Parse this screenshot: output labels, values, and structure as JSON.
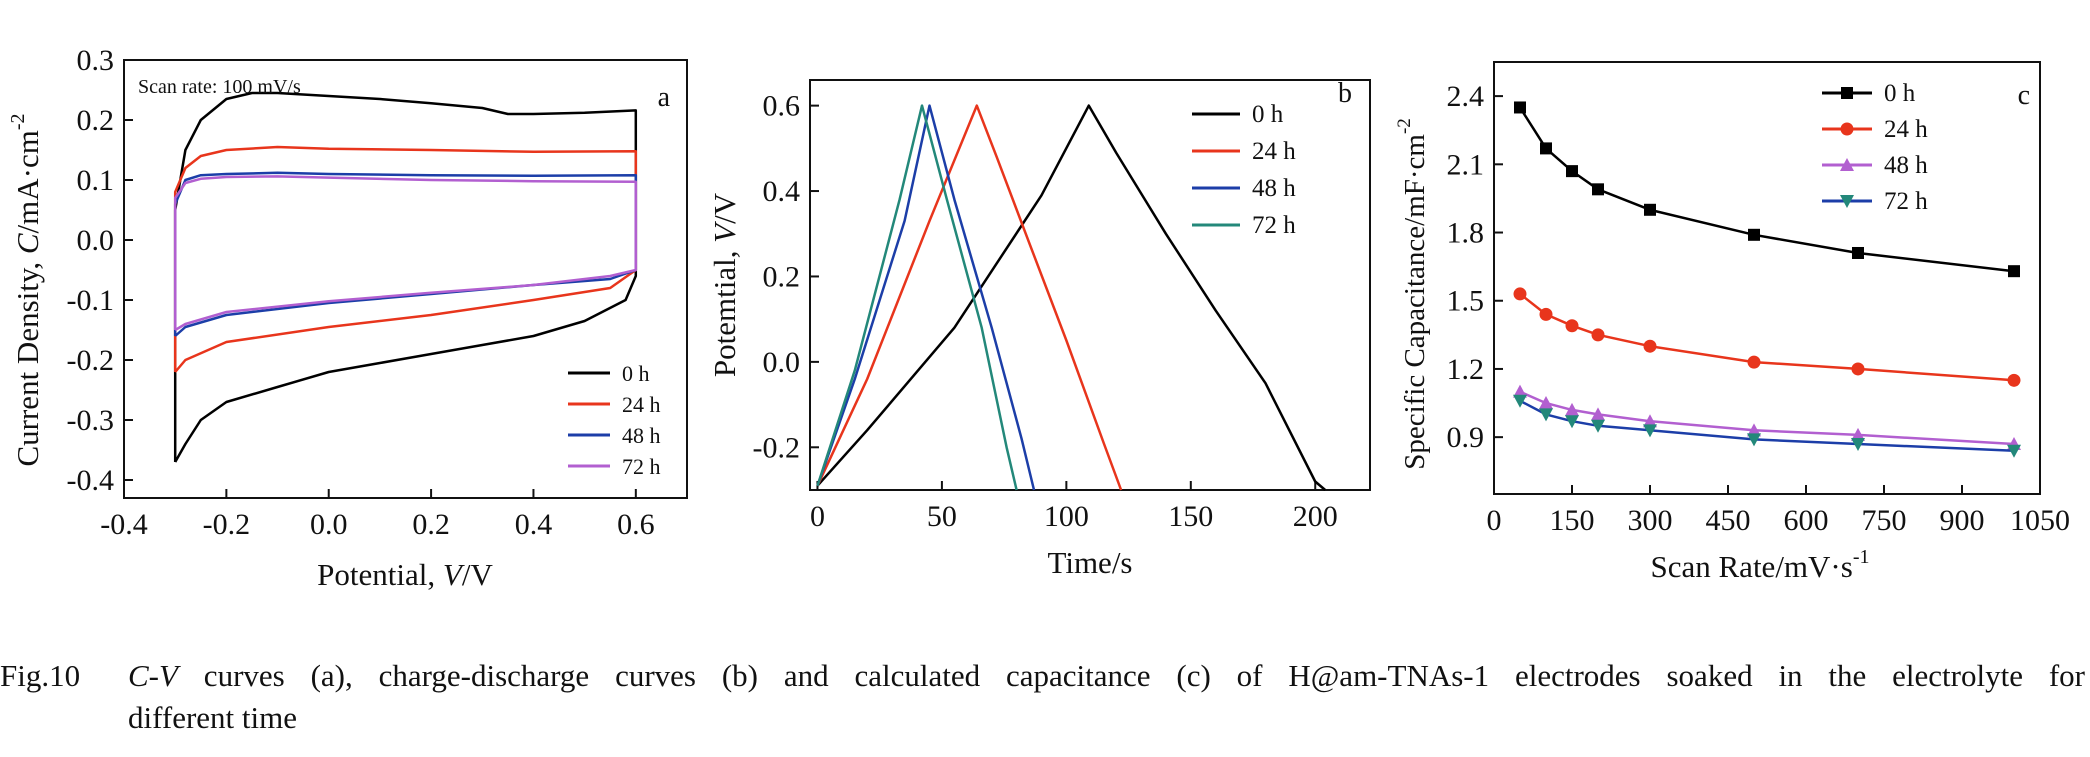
{
  "colors": {
    "0h": "#000000",
    "24h": "#e8351c",
    "48h": "#1c3ea8",
    "72h": "#b25fd0",
    "72h_b": "#23887a"
  },
  "caption": {
    "fig_label": "Fig.10",
    "text_line1": "C-V curves (a), charge-discharge curves (b) and calculated capacitance (c) of H@am-TNAs-1 electrodes soaked in the electrolyte for",
    "text_line2": "different time"
  },
  "chart_data": [
    {
      "panel": "a",
      "type": "line",
      "annotation": "Scan rate: 100 mV/s",
      "xlabel_prefix": "Potential, ",
      "xlabel_var": "V",
      "xlabel_suffix": "/V",
      "ylabel_prefix": "Current Density, ",
      "ylabel_var": "C",
      "ylabel_suffix": "/mA·cm",
      "ylabel_sup": "-2",
      "xlim": [
        -0.4,
        0.7
      ],
      "ylim": [
        -0.43,
        0.3
      ],
      "xticks": [
        -0.4,
        -0.2,
        0.0,
        0.2,
        0.4,
        0.6
      ],
      "xtick_labels": [
        "-0.4",
        "-0.2",
        "0.0",
        "0.2",
        "0.4",
        "0.6"
      ],
      "yticks": [
        0.3,
        0.2,
        0.1,
        0.0,
        -0.1,
        -0.2,
        -0.3,
        -0.4
      ],
      "ytick_labels": [
        "0.3",
        "0.2",
        "0.1",
        "0.0",
        "-0.1",
        "-0.2",
        "-0.3",
        "-0.4"
      ],
      "legend_position": "bottom-right",
      "series": [
        {
          "name": "0 h",
          "color": "#000000",
          "x": [
            -0.3,
            -0.3,
            -0.28,
            -0.25,
            -0.2,
            -0.15,
            -0.1,
            0.0,
            0.1,
            0.2,
            0.3,
            0.35,
            0.4,
            0.5,
            0.6,
            0.6,
            0.6,
            0.58,
            0.5,
            0.4,
            0.3,
            0.2,
            0.1,
            0.0,
            -0.1,
            -0.2,
            -0.25,
            -0.28,
            -0.3
          ],
          "y": [
            -0.37,
            0.05,
            0.15,
            0.2,
            0.235,
            0.245,
            0.245,
            0.24,
            0.235,
            0.228,
            0.22,
            0.21,
            0.21,
            0.212,
            0.216,
            0.2,
            -0.06,
            -0.1,
            -0.135,
            -0.16,
            -0.175,
            -0.19,
            -0.205,
            -0.22,
            -0.245,
            -0.27,
            -0.3,
            -0.34,
            -0.37
          ]
        },
        {
          "name": "24 h",
          "color": "#e8351c",
          "x": [
            -0.3,
            -0.3,
            -0.28,
            -0.25,
            -0.2,
            -0.1,
            0.0,
            0.2,
            0.4,
            0.6,
            0.6,
            0.6,
            0.55,
            0.4,
            0.2,
            0.0,
            -0.2,
            -0.28,
            -0.3
          ],
          "y": [
            -0.22,
            0.08,
            0.12,
            0.14,
            0.15,
            0.155,
            0.152,
            0.15,
            0.147,
            0.148,
            0.13,
            -0.05,
            -0.08,
            -0.1,
            -0.125,
            -0.145,
            -0.17,
            -0.2,
            -0.22
          ]
        },
        {
          "name": "48 h",
          "color": "#1c3ea8",
          "x": [
            -0.3,
            -0.3,
            -0.28,
            -0.25,
            -0.2,
            -0.1,
            0.0,
            0.2,
            0.4,
            0.6,
            0.6,
            0.6,
            0.55,
            0.4,
            0.2,
            0.0,
            -0.2,
            -0.28,
            -0.3
          ],
          "y": [
            -0.16,
            0.06,
            0.1,
            0.108,
            0.11,
            0.112,
            0.11,
            0.108,
            0.107,
            0.108,
            0.1,
            -0.05,
            -0.065,
            -0.075,
            -0.09,
            -0.105,
            -0.125,
            -0.145,
            -0.16
          ]
        },
        {
          "name": "72 h",
          "color": "#b25fd0",
          "x": [
            -0.3,
            -0.3,
            -0.28,
            -0.25,
            -0.2,
            -0.1,
            0.0,
            0.2,
            0.4,
            0.6,
            0.6,
            0.6,
            0.55,
            0.4,
            0.2,
            0.0,
            -0.2,
            -0.28,
            -0.3
          ],
          "y": [
            -0.15,
            0.07,
            0.095,
            0.102,
            0.105,
            0.106,
            0.104,
            0.1,
            0.098,
            0.097,
            0.09,
            -0.05,
            -0.06,
            -0.075,
            -0.088,
            -0.102,
            -0.12,
            -0.14,
            -0.15
          ]
        }
      ]
    },
    {
      "panel": "b",
      "type": "line",
      "xlabel": "Time/s",
      "ylabel_prefix": "Potemtial, ",
      "ylabel_var": "V",
      "ylabel_suffix": "/V",
      "xlim": [
        -3,
        222
      ],
      "ylim": [
        -0.3,
        0.66
      ],
      "xticks": [
        0,
        50,
        100,
        150,
        200
      ],
      "xtick_labels": [
        "0",
        "50",
        "100",
        "150",
        "200"
      ],
      "yticks": [
        0.6,
        0.4,
        0.2,
        0.0,
        -0.2
      ],
      "ytick_labels": [
        "0.6",
        "0.4",
        "0.2",
        "0.0",
        "-0.2"
      ],
      "legend_position": "top-right",
      "series": [
        {
          "name": "0 h",
          "color": "#000000",
          "x": [
            0,
            20,
            55,
            90,
            109,
            120,
            140,
            160,
            180,
            200,
            204
          ],
          "y": [
            -0.29,
            -0.16,
            0.08,
            0.39,
            0.6,
            0.49,
            0.3,
            0.12,
            -0.05,
            -0.28,
            -0.3
          ]
        },
        {
          "name": "24 h",
          "color": "#e8351c",
          "x": [
            0,
            20,
            45,
            64,
            72,
            85,
            100,
            115,
            122
          ],
          "y": [
            -0.29,
            -0.04,
            0.33,
            0.6,
            0.48,
            0.28,
            0.05,
            -0.19,
            -0.3
          ]
        },
        {
          "name": "48 h",
          "color": "#1c3ea8",
          "x": [
            0,
            15,
            35,
            45,
            55,
            70,
            82,
            87
          ],
          "y": [
            -0.29,
            -0.04,
            0.33,
            0.6,
            0.38,
            0.08,
            -0.18,
            -0.3
          ]
        },
        {
          "name": "72 h",
          "color": "#23887a",
          "x": [
            0,
            15,
            33,
            42,
            52,
            66,
            76,
            80
          ],
          "y": [
            -0.29,
            -0.02,
            0.38,
            0.6,
            0.38,
            0.08,
            -0.2,
            -0.3
          ]
        }
      ]
    },
    {
      "panel": "c",
      "type": "line",
      "xlabel": "Scan Rate/mV·s",
      "xlabel_sup": "-1",
      "ylabel": "Specific Capacitance/mF·cm",
      "ylabel_sup": "-2",
      "xlim": [
        0,
        1050
      ],
      "ylim": [
        0.65,
        2.55
      ],
      "xticks": [
        0,
        150,
        300,
        450,
        600,
        750,
        900,
        1050
      ],
      "xtick_labels": [
        "0",
        "150",
        "300",
        "450",
        "600",
        "750",
        "900",
        "1050"
      ],
      "yticks": [
        2.4,
        2.1,
        1.8,
        1.5,
        1.2,
        0.9
      ],
      "ytick_labels": [
        "2.4",
        "2.1",
        "1.8",
        "1.5",
        "1.2",
        "0.9"
      ],
      "legend_position": "top-right",
      "x": [
        50,
        100,
        150,
        200,
        300,
        500,
        700,
        1000
      ],
      "series": [
        {
          "name": "0 h",
          "color": "#000000",
          "marker": "square",
          "values": [
            2.35,
            2.17,
            2.07,
            1.99,
            1.9,
            1.79,
            1.71,
            1.63
          ]
        },
        {
          "name": "24 h",
          "color": "#e8351c",
          "marker": "circle",
          "values": [
            1.53,
            1.44,
            1.39,
            1.35,
            1.3,
            1.23,
            1.2,
            1.15
          ]
        },
        {
          "name": "48 h",
          "color": "#b25fd0",
          "marker": "triangle-up",
          "values": [
            1.1,
            1.05,
            1.02,
            1.0,
            0.97,
            0.93,
            0.91,
            0.87
          ]
        },
        {
          "name": "72 h",
          "color": "#1c3ea8",
          "marker_color": "#23887a",
          "marker": "triangle-down",
          "values": [
            1.06,
            1.0,
            0.97,
            0.95,
            0.93,
            0.89,
            0.87,
            0.84
          ]
        }
      ]
    }
  ]
}
